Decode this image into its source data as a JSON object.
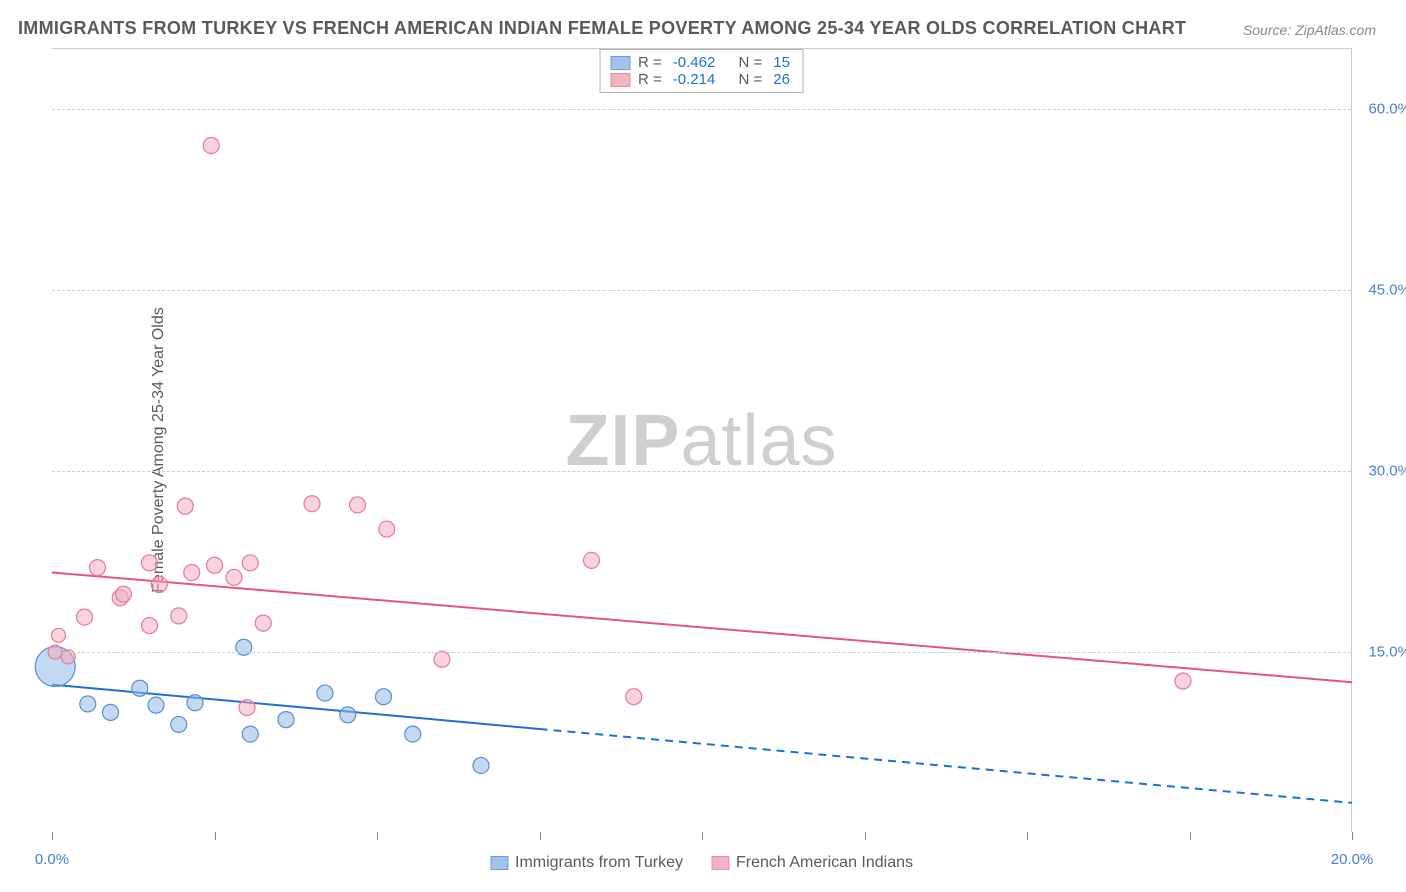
{
  "title": "IMMIGRANTS FROM TURKEY VS FRENCH AMERICAN INDIAN FEMALE POVERTY AMONG 25-34 YEAR OLDS CORRELATION CHART",
  "source": "Source: ZipAtlas.com",
  "ylabel": "Female Poverty Among 25-34 Year Olds",
  "watermark_prefix": "ZIP",
  "watermark_suffix": "atlas",
  "chart": {
    "type": "scatter",
    "xlim": [
      0,
      20
    ],
    "ylim": [
      0,
      65
    ],
    "x_tick_positions": [
      0,
      2.5,
      5,
      7.5,
      10,
      12.5,
      15,
      17.5,
      20
    ],
    "x_tick_labels": {
      "0": "0.0%",
      "20": "20.0%"
    },
    "y_ticks": [
      15,
      30,
      45,
      60
    ],
    "y_tick_labels": [
      "15.0%",
      "30.0%",
      "45.0%",
      "60.0%"
    ],
    "grid_color": "#cfcfcf",
    "background_color": "#ffffff",
    "series": [
      {
        "name": "Immigrants from Turkey",
        "marker_color": "#92b9e6",
        "marker_border": "#5a8fd0",
        "marker_fill_opacity": 0.55,
        "line_color": "#1f6fd4",
        "line_width": 2,
        "dash_after_x": 7.5,
        "trend": {
          "x1": 0,
          "y1": 12.3,
          "x2": 20,
          "y2": 2.5
        },
        "R": "-0.462",
        "N": "15",
        "points": [
          {
            "x": 0.05,
            "y": 13.8,
            "r": 20
          },
          {
            "x": 0.55,
            "y": 10.7,
            "r": 8
          },
          {
            "x": 0.9,
            "y": 10.0,
            "r": 8
          },
          {
            "x": 1.35,
            "y": 12.0,
            "r": 8
          },
          {
            "x": 1.6,
            "y": 10.6,
            "r": 8
          },
          {
            "x": 1.95,
            "y": 9.0,
            "r": 8
          },
          {
            "x": 2.2,
            "y": 10.8,
            "r": 8
          },
          {
            "x": 2.95,
            "y": 15.4,
            "r": 8
          },
          {
            "x": 3.05,
            "y": 8.2,
            "r": 8
          },
          {
            "x": 3.6,
            "y": 9.4,
            "r": 8
          },
          {
            "x": 4.2,
            "y": 11.6,
            "r": 8
          },
          {
            "x": 4.55,
            "y": 9.8,
            "r": 8
          },
          {
            "x": 5.1,
            "y": 11.3,
            "r": 8
          },
          {
            "x": 5.55,
            "y": 8.2,
            "r": 8
          },
          {
            "x": 6.6,
            "y": 5.6,
            "r": 8
          }
        ]
      },
      {
        "name": "French American Indians",
        "marker_color": "#f2a7b8",
        "marker_border": "#e77a97",
        "marker_fill_opacity": 0.5,
        "line_color": "#e6557d",
        "line_width": 2,
        "dash_after_x": null,
        "trend": {
          "x1": 0,
          "y1": 21.6,
          "x2": 20,
          "y2": 12.5
        },
        "R": "-0.214",
        "N": "26",
        "points": [
          {
            "x": 0.05,
            "y": 15.0,
            "r": 7
          },
          {
            "x": 0.1,
            "y": 16.4,
            "r": 7
          },
          {
            "x": 0.25,
            "y": 14.6,
            "r": 7
          },
          {
            "x": 0.5,
            "y": 17.9,
            "r": 8
          },
          {
            "x": 0.7,
            "y": 22.0,
            "r": 8
          },
          {
            "x": 1.05,
            "y": 19.5,
            "r": 8
          },
          {
            "x": 1.1,
            "y": 19.8,
            "r": 8
          },
          {
            "x": 1.5,
            "y": 17.2,
            "r": 8
          },
          {
            "x": 1.5,
            "y": 22.4,
            "r": 8
          },
          {
            "x": 1.65,
            "y": 20.6,
            "r": 8
          },
          {
            "x": 1.95,
            "y": 18.0,
            "r": 8
          },
          {
            "x": 2.05,
            "y": 27.1,
            "r": 8
          },
          {
            "x": 2.15,
            "y": 21.6,
            "r": 8
          },
          {
            "x": 2.45,
            "y": 57.0,
            "r": 8
          },
          {
            "x": 2.5,
            "y": 22.2,
            "r": 8
          },
          {
            "x": 2.8,
            "y": 21.2,
            "r": 8
          },
          {
            "x": 3.0,
            "y": 10.4,
            "r": 8
          },
          {
            "x": 3.05,
            "y": 22.4,
            "r": 8
          },
          {
            "x": 3.25,
            "y": 17.4,
            "r": 8
          },
          {
            "x": 4.0,
            "y": 27.3,
            "r": 8
          },
          {
            "x": 4.7,
            "y": 27.2,
            "r": 8
          },
          {
            "x": 5.15,
            "y": 25.2,
            "r": 8
          },
          {
            "x": 6.0,
            "y": 14.4,
            "r": 8
          },
          {
            "x": 8.3,
            "y": 22.6,
            "r": 8
          },
          {
            "x": 8.95,
            "y": 11.3,
            "r": 8
          },
          {
            "x": 17.4,
            "y": 12.6,
            "r": 8
          }
        ]
      }
    ],
    "legend_top_label_R": "R =",
    "legend_top_label_N": "N =",
    "title_fontsize": 18,
    "label_fontsize": 16,
    "tick_fontsize": 15,
    "tick_color": "#4a7fd6"
  }
}
